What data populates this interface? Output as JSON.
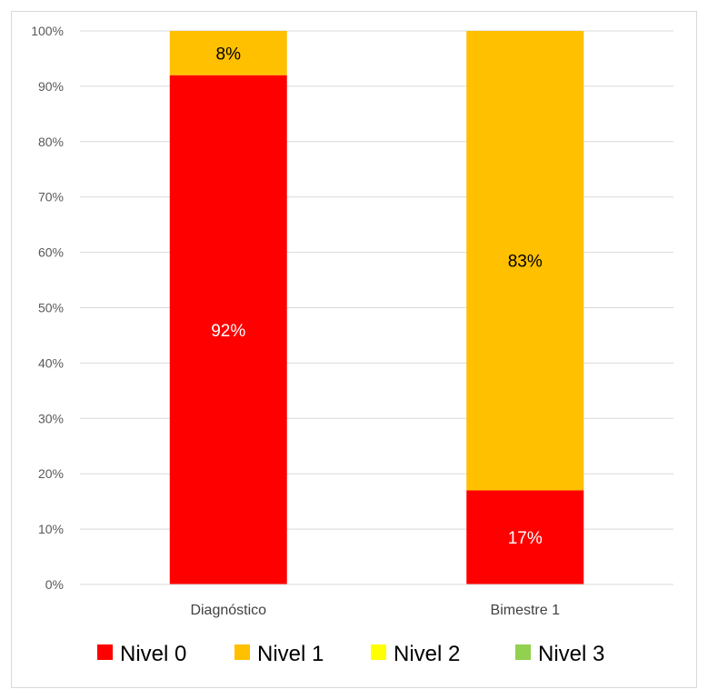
{
  "chart_data": {
    "type": "bar",
    "stacked": true,
    "percent": true,
    "categories": [
      "Diagnóstico",
      "Bimestre 1"
    ],
    "series": [
      {
        "name": "Nivel 0",
        "color": "#ff0000",
        "values": [
          92,
          17
        ],
        "labels": [
          "92%",
          "17%"
        ],
        "label_color": "#ffffff"
      },
      {
        "name": "Nivel 1",
        "color": "#ffc000",
        "values": [
          8,
          83
        ],
        "labels": [
          "8%",
          "83%"
        ],
        "label_color": "#000000"
      },
      {
        "name": "Nivel 2",
        "color": "#ffff00",
        "values": [
          0,
          0
        ],
        "labels": [
          "",
          ""
        ],
        "label_color": "#000000"
      },
      {
        "name": "Nivel 3",
        "color": "#92d050",
        "values": [
          0,
          0
        ],
        "labels": [
          "",
          ""
        ],
        "label_color": "#000000"
      }
    ],
    "ylim": [
      0,
      100
    ],
    "yticks": [
      "0%",
      "10%",
      "20%",
      "30%",
      "40%",
      "50%",
      "60%",
      "70%",
      "80%",
      "90%",
      "100%"
    ],
    "grid": true,
    "legend_position": "bottom"
  }
}
